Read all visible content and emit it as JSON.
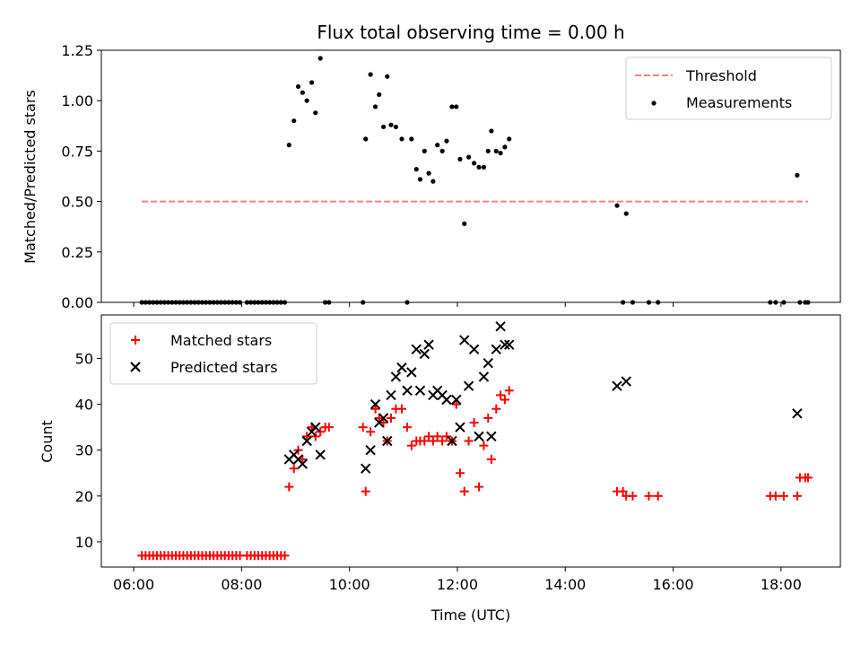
{
  "chart_data": [
    {
      "type": "scatter",
      "title": "Flux total observing time = 0.00 h",
      "xlabel": "",
      "ylabel": "Matched/Predicted stars",
      "xlim": [
        5.4,
        19.1
      ],
      "ylim": [
        0,
        1.25
      ],
      "yticks": [
        0.0,
        0.25,
        0.5,
        0.75,
        1.0,
        1.25
      ],
      "ytick_labels": [
        "0.00",
        "0.25",
        "0.50",
        "0.75",
        "1.00",
        "1.25"
      ],
      "legend_position": "top-right",
      "grid": false,
      "series": [
        {
          "name": "Threshold",
          "kind": "dashed-line",
          "color": "#ff7f7f",
          "x": [
            6.15,
            18.5
          ],
          "y": [
            0.5,
            0.5
          ]
        },
        {
          "name": "Measurements",
          "kind": "dot",
          "color": "#000000",
          "points": [
            [
              6.15,
              0
            ],
            [
              6.22,
              0
            ],
            [
              6.29,
              0
            ],
            [
              6.36,
              0
            ],
            [
              6.43,
              0
            ],
            [
              6.5,
              0
            ],
            [
              6.57,
              0
            ],
            [
              6.64,
              0
            ],
            [
              6.71,
              0
            ],
            [
              6.78,
              0
            ],
            [
              6.85,
              0
            ],
            [
              6.92,
              0
            ],
            [
              6.99,
              0
            ],
            [
              7.06,
              0
            ],
            [
              7.13,
              0
            ],
            [
              7.2,
              0
            ],
            [
              7.27,
              0
            ],
            [
              7.34,
              0
            ],
            [
              7.41,
              0
            ],
            [
              7.48,
              0
            ],
            [
              7.55,
              0
            ],
            [
              7.62,
              0
            ],
            [
              7.69,
              0
            ],
            [
              7.76,
              0
            ],
            [
              7.83,
              0
            ],
            [
              7.9,
              0
            ],
            [
              7.97,
              0
            ],
            [
              8.1,
              0
            ],
            [
              8.17,
              0
            ],
            [
              8.24,
              0
            ],
            [
              8.31,
              0
            ],
            [
              8.38,
              0
            ],
            [
              8.45,
              0
            ],
            [
              8.52,
              0
            ],
            [
              8.59,
              0
            ],
            [
              8.66,
              0
            ],
            [
              8.73,
              0
            ],
            [
              8.8,
              0
            ],
            [
              8.88,
              0.78
            ],
            [
              8.97,
              0.9
            ],
            [
              9.05,
              1.07
            ],
            [
              9.13,
              1.04
            ],
            [
              9.21,
              1.0
            ],
            [
              9.3,
              1.09
            ],
            [
              9.37,
              0.94
            ],
            [
              9.46,
              1.21
            ],
            [
              9.55,
              0
            ],
            [
              9.62,
              0
            ],
            [
              10.25,
              0
            ],
            [
              10.3,
              0.81
            ],
            [
              10.39,
              1.13
            ],
            [
              10.48,
              0.97
            ],
            [
              10.55,
              1.03
            ],
            [
              10.63,
              0.87
            ],
            [
              10.7,
              1.12
            ],
            [
              10.77,
              0.88
            ],
            [
              10.86,
              0.87
            ],
            [
              10.97,
              0.81
            ],
            [
              11.07,
              0
            ],
            [
              11.15,
              0.81
            ],
            [
              11.24,
              0.66
            ],
            [
              11.31,
              0.61
            ],
            [
              11.39,
              0.75
            ],
            [
              11.47,
              0.64
            ],
            [
              11.55,
              0.6
            ],
            [
              11.63,
              0.78
            ],
            [
              11.72,
              0.75
            ],
            [
              11.8,
              0.8
            ],
            [
              11.9,
              0.97
            ],
            [
              11.98,
              0.97
            ],
            [
              12.05,
              0.71
            ],
            [
              12.13,
              0.39
            ],
            [
              12.21,
              0.72
            ],
            [
              12.31,
              0.69
            ],
            [
              12.4,
              0.67
            ],
            [
              12.49,
              0.67
            ],
            [
              12.57,
              0.75
            ],
            [
              12.63,
              0.85
            ],
            [
              12.72,
              0.75
            ],
            [
              12.8,
              0.74
            ],
            [
              12.88,
              0.77
            ],
            [
              12.96,
              0.81
            ],
            [
              14.96,
              0.48
            ],
            [
              15.07,
              0
            ],
            [
              15.13,
              0.44
            ],
            [
              15.25,
              0
            ],
            [
              15.55,
              0
            ],
            [
              15.72,
              0
            ],
            [
              17.8,
              0
            ],
            [
              17.9,
              0
            ],
            [
              18.05,
              0
            ],
            [
              18.3,
              0.63
            ],
            [
              18.35,
              0
            ],
            [
              18.45,
              0
            ],
            [
              18.5,
              0
            ]
          ]
        }
      ]
    },
    {
      "type": "scatter",
      "title": "",
      "xlabel": "Time (UTC)",
      "ylabel": "Count",
      "xlim": [
        5.4,
        19.1
      ],
      "ylim": [
        4.5,
        59.5
      ],
      "xticks": [
        6,
        8,
        10,
        12,
        14,
        16,
        18
      ],
      "xtick_labels": [
        "06:00",
        "08:00",
        "10:00",
        "12:00",
        "14:00",
        "16:00",
        "18:00"
      ],
      "yticks": [
        10,
        20,
        30,
        40,
        50
      ],
      "ytick_labels": [
        "10",
        "20",
        "30",
        "40",
        "50"
      ],
      "legend_position": "top-left",
      "grid": false,
      "series": [
        {
          "name": "Matched stars",
          "kind": "plus",
          "color": "#ff0000",
          "points": [
            [
              6.15,
              7
            ],
            [
              6.22,
              7
            ],
            [
              6.29,
              7
            ],
            [
              6.36,
              7
            ],
            [
              6.43,
              7
            ],
            [
              6.5,
              7
            ],
            [
              6.57,
              7
            ],
            [
              6.64,
              7
            ],
            [
              6.71,
              7
            ],
            [
              6.78,
              7
            ],
            [
              6.85,
              7
            ],
            [
              6.92,
              7
            ],
            [
              6.99,
              7
            ],
            [
              7.06,
              7
            ],
            [
              7.13,
              7
            ],
            [
              7.2,
              7
            ],
            [
              7.27,
              7
            ],
            [
              7.34,
              7
            ],
            [
              7.41,
              7
            ],
            [
              7.48,
              7
            ],
            [
              7.55,
              7
            ],
            [
              7.62,
              7
            ],
            [
              7.69,
              7
            ],
            [
              7.76,
              7
            ],
            [
              7.83,
              7
            ],
            [
              7.9,
              7
            ],
            [
              7.97,
              7
            ],
            [
              8.1,
              7
            ],
            [
              8.17,
              7
            ],
            [
              8.24,
              7
            ],
            [
              8.31,
              7
            ],
            [
              8.38,
              7
            ],
            [
              8.45,
              7
            ],
            [
              8.52,
              7
            ],
            [
              8.59,
              7
            ],
            [
              8.66,
              7
            ],
            [
              8.73,
              7
            ],
            [
              8.8,
              7
            ],
            [
              8.88,
              22
            ],
            [
              8.97,
              26
            ],
            [
              9.05,
              30
            ],
            [
              9.13,
              28
            ],
            [
              9.21,
              33
            ],
            [
              9.3,
              35
            ],
            [
              9.37,
              33
            ],
            [
              9.46,
              34
            ],
            [
              9.55,
              35
            ],
            [
              9.62,
              35
            ],
            [
              10.25,
              35
            ],
            [
              10.3,
              21
            ],
            [
              10.39,
              34
            ],
            [
              10.48,
              39
            ],
            [
              10.55,
              37
            ],
            [
              10.63,
              36
            ],
            [
              10.7,
              32
            ],
            [
              10.77,
              37
            ],
            [
              10.86,
              39
            ],
            [
              10.97,
              39
            ],
            [
              11.07,
              35
            ],
            [
              11.15,
              31
            ],
            [
              11.24,
              32
            ],
            [
              11.31,
              32
            ],
            [
              11.39,
              32
            ],
            [
              11.47,
              33
            ],
            [
              11.55,
              32
            ],
            [
              11.63,
              33
            ],
            [
              11.72,
              32
            ],
            [
              11.8,
              33
            ],
            [
              11.9,
              32
            ],
            [
              11.98,
              40
            ],
            [
              12.05,
              25
            ],
            [
              12.13,
              21
            ],
            [
              12.21,
              32
            ],
            [
              12.31,
              36
            ],
            [
              12.4,
              22
            ],
            [
              12.49,
              31
            ],
            [
              12.57,
              37
            ],
            [
              12.63,
              28
            ],
            [
              12.72,
              39
            ],
            [
              12.8,
              42
            ],
            [
              12.88,
              41
            ],
            [
              12.96,
              43
            ],
            [
              14.96,
              21
            ],
            [
              15.07,
              21
            ],
            [
              15.13,
              20
            ],
            [
              15.25,
              20
            ],
            [
              15.55,
              20
            ],
            [
              15.72,
              20
            ],
            [
              17.8,
              20
            ],
            [
              17.9,
              20
            ],
            [
              18.05,
              20
            ],
            [
              18.3,
              20
            ],
            [
              18.35,
              24
            ],
            [
              18.45,
              24
            ],
            [
              18.5,
              24
            ]
          ]
        },
        {
          "name": "Predicted stars",
          "kind": "cross",
          "color": "#000000",
          "points": [
            [
              8.88,
              28
            ],
            [
              8.97,
              29
            ],
            [
              9.05,
              28
            ],
            [
              9.13,
              27
            ],
            [
              9.21,
              32
            ],
            [
              9.3,
              34
            ],
            [
              9.37,
              35
            ],
            [
              9.46,
              29
            ],
            [
              10.3,
              26
            ],
            [
              10.39,
              30
            ],
            [
              10.48,
              40
            ],
            [
              10.55,
              36
            ],
            [
              10.63,
              37
            ],
            [
              10.7,
              32
            ],
            [
              10.77,
              42
            ],
            [
              10.86,
              46
            ],
            [
              10.97,
              48
            ],
            [
              11.07,
              43
            ],
            [
              11.15,
              47
            ],
            [
              11.24,
              52
            ],
            [
              11.31,
              43
            ],
            [
              11.39,
              51
            ],
            [
              11.47,
              53
            ],
            [
              11.55,
              42
            ],
            [
              11.63,
              43
            ],
            [
              11.72,
              42
            ],
            [
              11.8,
              41
            ],
            [
              11.9,
              32
            ],
            [
              11.98,
              41
            ],
            [
              12.05,
              35
            ],
            [
              12.13,
              54
            ],
            [
              12.21,
              44
            ],
            [
              12.31,
              52
            ],
            [
              12.4,
              33
            ],
            [
              12.49,
              46
            ],
            [
              12.57,
              49
            ],
            [
              12.63,
              33
            ],
            [
              12.72,
              52
            ],
            [
              12.8,
              57
            ],
            [
              12.88,
              53
            ],
            [
              12.96,
              53
            ],
            [
              14.96,
              44
            ],
            [
              15.13,
              45
            ],
            [
              18.3,
              38
            ]
          ]
        }
      ]
    }
  ]
}
